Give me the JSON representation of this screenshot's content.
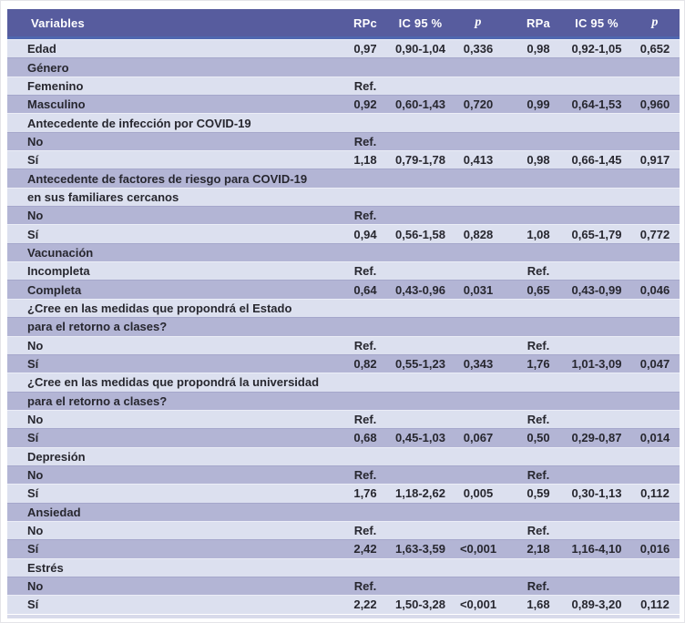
{
  "colors": {
    "header_bg": "#575c9e",
    "header_accent": "#4f67b0",
    "row_light": "#dce0ef",
    "row_dark": "#b3b5d5",
    "header_text": "#ffffff",
    "body_text": "#27272f",
    "bottom_rule": "#d8daea"
  },
  "table": {
    "columns": [
      {
        "label": "Variables"
      },
      {
        "label": "RPc"
      },
      {
        "label": "IC 95 %"
      },
      {
        "label": "p"
      },
      {
        "label": ""
      },
      {
        "label": "RPa"
      },
      {
        "label": "IC 95 %"
      },
      {
        "label": "p"
      }
    ],
    "rows": [
      {
        "variable": "Edad",
        "rpc": "0,97",
        "ic1": "0,90-1,04",
        "p1": "0,336",
        "rpa": "0,98",
        "ic2": "0,92-1,05",
        "p2": "0,652",
        "shade": "light"
      },
      {
        "variable": "Género",
        "rpc": "",
        "ic1": "",
        "p1": "",
        "rpa": "",
        "ic2": "",
        "p2": "",
        "shade": "dark"
      },
      {
        "variable": "Femenino",
        "rpc": "Ref.",
        "ic1": "",
        "p1": "",
        "rpa": "",
        "ic2": "",
        "p2": "",
        "shade": "light"
      },
      {
        "variable": "Masculino",
        "rpc": "0,92",
        "ic1": "0,60-1,43",
        "p1": "0,720",
        "rpa": "0,99",
        "ic2": "0,64-1,53",
        "p2": "0,960",
        "shade": "dark"
      },
      {
        "variable": "Antecedente de infección por COVID-19",
        "rpc": "",
        "ic1": "",
        "p1": "",
        "rpa": "",
        "ic2": "",
        "p2": "",
        "shade": "light"
      },
      {
        "variable": "No",
        "rpc": "Ref.",
        "ic1": "",
        "p1": "",
        "rpa": "",
        "ic2": "",
        "p2": "",
        "shade": "dark"
      },
      {
        "variable": "Sí",
        "rpc": "1,18",
        "ic1": "0,79-1,78",
        "p1": "0,413",
        "rpa": "0,98",
        "ic2": "0,66-1,45",
        "p2": "0,917",
        "shade": "light"
      },
      {
        "variable": "Antecedente de factores de riesgo para COVID-19",
        "rpc": "",
        "ic1": "",
        "p1": "",
        "rpa": "",
        "ic2": "",
        "p2": "",
        "shade": "dark"
      },
      {
        "variable": "en sus familiares cercanos",
        "rpc": "",
        "ic1": "",
        "p1": "",
        "rpa": "",
        "ic2": "",
        "p2": "",
        "shade": "light"
      },
      {
        "variable": "No",
        "rpc": "Ref.",
        "ic1": "",
        "p1": "",
        "rpa": "",
        "ic2": "",
        "p2": "",
        "shade": "dark"
      },
      {
        "variable": "Sí",
        "rpc": "0,94",
        "ic1": "0,56-1,58",
        "p1": "0,828",
        "rpa": "1,08",
        "ic2": "0,65-1,79",
        "p2": "0,772",
        "shade": "light"
      },
      {
        "variable": "Vacunación",
        "rpc": "",
        "ic1": "",
        "p1": "",
        "rpa": "",
        "ic2": "",
        "p2": "",
        "shade": "dark"
      },
      {
        "variable": "Incompleta",
        "rpc": "Ref.",
        "ic1": "",
        "p1": "",
        "rpa": "Ref.",
        "ic2": "",
        "p2": "",
        "shade": "light"
      },
      {
        "variable": "Completa",
        "rpc": "0,64",
        "ic1": "0,43-0,96",
        "p1": "0,031",
        "rpa": "0,65",
        "ic2": "0,43-0,99",
        "p2": "0,046",
        "shade": "dark"
      },
      {
        "variable": "¿Cree en las medidas que propondrá el Estado",
        "rpc": "",
        "ic1": "",
        "p1": "",
        "rpa": "",
        "ic2": "",
        "p2": "",
        "shade": "light"
      },
      {
        "variable": "para el retorno a clases?",
        "rpc": "",
        "ic1": "",
        "p1": "",
        "rpa": "",
        "ic2": "",
        "p2": "",
        "shade": "dark"
      },
      {
        "variable": "No",
        "rpc": "Ref.",
        "ic1": "",
        "p1": "",
        "rpa": "Ref.",
        "ic2": "",
        "p2": "",
        "shade": "light"
      },
      {
        "variable": "Sí",
        "rpc": "0,82",
        "ic1": "0,55-1,23",
        "p1": "0,343",
        "rpa": "1,76",
        "ic2": "1,01-3,09",
        "p2": "0,047",
        "shade": "dark"
      },
      {
        "variable": "¿Cree en las medidas que propondrá la universidad",
        "rpc": "",
        "ic1": "",
        "p1": "",
        "rpa": "",
        "ic2": "",
        "p2": "",
        "shade": "light"
      },
      {
        "variable": "para el retorno a clases?",
        "rpc": "",
        "ic1": "",
        "p1": "",
        "rpa": "",
        "ic2": "",
        "p2": "",
        "shade": "dark"
      },
      {
        "variable": "No",
        "rpc": "Ref.",
        "ic1": "",
        "p1": "",
        "rpa": "Ref.",
        "ic2": "",
        "p2": "",
        "shade": "light"
      },
      {
        "variable": "Sí",
        "rpc": "0,68",
        "ic1": "0,45-1,03",
        "p1": "0,067",
        "rpa": "0,50",
        "ic2": "0,29-0,87",
        "p2": "0,014",
        "shade": "dark"
      },
      {
        "variable": "Depresión",
        "rpc": "",
        "ic1": "",
        "p1": "",
        "rpa": "",
        "ic2": "",
        "p2": "",
        "shade": "light"
      },
      {
        "variable": "No",
        "rpc": "Ref.",
        "ic1": "",
        "p1": "",
        "rpa": "Ref.",
        "ic2": "",
        "p2": "",
        "shade": "dark"
      },
      {
        "variable": "Sí",
        "rpc": "1,76",
        "ic1": "1,18-2,62",
        "p1": "0,005",
        "rpa": "0,59",
        "ic2": "0,30-1,13",
        "p2": "0,112",
        "shade": "light"
      },
      {
        "variable": "Ansiedad",
        "rpc": "",
        "ic1": "",
        "p1": "",
        "rpa": "",
        "ic2": "",
        "p2": "",
        "shade": "dark"
      },
      {
        "variable": "No",
        "rpc": "Ref.",
        "ic1": "",
        "p1": "",
        "rpa": "Ref.",
        "ic2": "",
        "p2": "",
        "shade": "light"
      },
      {
        "variable": "Sí",
        "rpc": "2,42",
        "ic1": "1,63-3,59",
        "p1": "<0,001",
        "rpa": "2,18",
        "ic2": "1,16-4,10",
        "p2": "0,016",
        "shade": "dark"
      },
      {
        "variable": "Estrés",
        "rpc": "",
        "ic1": "",
        "p1": "",
        "rpa": "",
        "ic2": "",
        "p2": "",
        "shade": "light"
      },
      {
        "variable": "No",
        "rpc": "Ref.",
        "ic1": "",
        "p1": "",
        "rpa": "Ref.",
        "ic2": "",
        "p2": "",
        "shade": "dark"
      },
      {
        "variable": "Sí",
        "rpc": "2,22",
        "ic1": "1,50-3,28",
        "p1": "<0,001",
        "rpa": "1,68",
        "ic2": "0,89-3,20",
        "p2": "0,112",
        "shade": "light"
      }
    ]
  }
}
